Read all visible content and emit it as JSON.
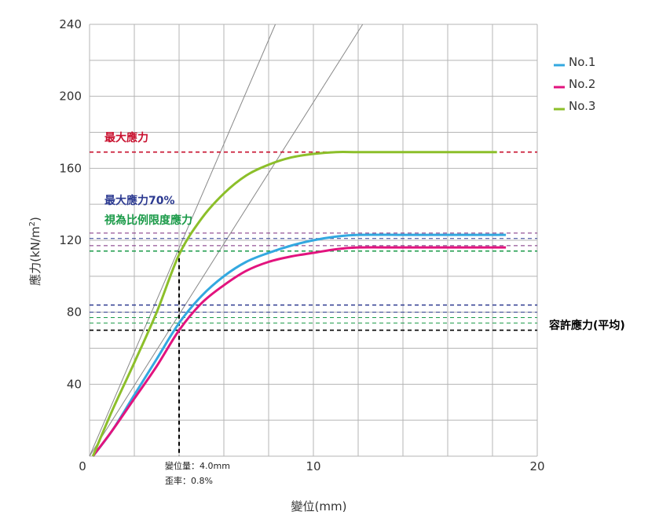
{
  "chart_data": {
    "type": "line",
    "xlabel": "變位(mm)",
    "ylabel": "應力(kN/m",
    "ylabel_sup": "2",
    "ylabel_close": ")",
    "xlim": [
      0,
      20
    ],
    "ylim": [
      0,
      240
    ],
    "x_ticks": [
      0,
      10,
      20
    ],
    "y_ticks": [
      40,
      80,
      120,
      160,
      200,
      240
    ],
    "grid": true,
    "legend_position": "top-right",
    "series": [
      {
        "name": "No.1",
        "color": "#33a8e0",
        "points": [
          [
            0.15,
            0
          ],
          [
            1,
            14
          ],
          [
            2,
            34
          ],
          [
            3,
            54
          ],
          [
            4,
            74
          ],
          [
            5,
            89
          ],
          [
            6,
            100
          ],
          [
            7,
            108
          ],
          [
            8,
            113
          ],
          [
            9,
            117
          ],
          [
            10,
            120
          ],
          [
            11,
            122
          ],
          [
            12,
            123
          ],
          [
            14,
            123
          ],
          [
            16,
            123
          ],
          [
            18.6,
            123
          ]
        ]
      },
      {
        "name": "No.2",
        "color": "#e2137e",
        "points": [
          [
            0.15,
            0
          ],
          [
            1,
            14
          ],
          [
            2,
            32
          ],
          [
            3,
            50
          ],
          [
            4,
            70
          ],
          [
            5,
            85
          ],
          [
            6,
            95
          ],
          [
            7,
            103
          ],
          [
            8,
            108
          ],
          [
            9,
            111
          ],
          [
            10,
            113
          ],
          [
            11,
            115
          ],
          [
            12,
            116
          ],
          [
            14,
            116
          ],
          [
            16,
            116
          ],
          [
            18.6,
            116
          ]
        ]
      },
      {
        "name": "No.3",
        "color": "#8cbf2a",
        "points": [
          [
            0.15,
            0
          ],
          [
            1,
            25
          ],
          [
            2,
            52
          ],
          [
            3,
            80
          ],
          [
            4,
            112
          ],
          [
            5,
            132
          ],
          [
            6,
            146
          ],
          [
            7,
            156
          ],
          [
            8,
            162
          ],
          [
            9,
            166
          ],
          [
            10,
            168
          ],
          [
            11,
            169
          ],
          [
            12,
            169
          ],
          [
            14,
            169
          ],
          [
            16,
            169
          ],
          [
            18.2,
            169
          ]
        ]
      }
    ],
    "reference_lines": [
      {
        "y": 169,
        "color": "#c8102e"
      },
      {
        "y": 124,
        "color": "#7b2a7d"
      },
      {
        "y": 121,
        "color": "#2b3990"
      },
      {
        "y": 117,
        "color": "#7b2a7d"
      },
      {
        "y": 114,
        "color": "#1a9a48"
      },
      {
        "y": 84,
        "color": "#2b3990"
      },
      {
        "y": 80,
        "color": "#2b3990"
      },
      {
        "y": 77,
        "color": "#1a9a48"
      },
      {
        "y": 74,
        "color": "#1a9a48"
      },
      {
        "y": 70,
        "color": "#000000"
      }
    ],
    "marker_x": 4,
    "marker_y": 114,
    "tangent_lines": [
      {
        "x1": 0,
        "y1": 0,
        "x2": 8.3,
        "y2": 240
      },
      {
        "x1": 0,
        "y1": 0,
        "x2": 12.2,
        "y2": 240
      }
    ],
    "annotations": {
      "max_stress": "最大應力",
      "max70_line1": "最大應力70%",
      "max70_line2": "視為比例限度應力",
      "allowable": "容許應力(平均)",
      "disp_note": "變位量：4.0mm",
      "strain_note": "歪率：0.8%"
    },
    "colors": {
      "max_stress_text": "#c8102e",
      "max70_text": "#2b3990",
      "proportional_text": "#1a9a48",
      "allowable_text": "#000000",
      "grid": "#b5b5b5",
      "tangent": "#888888"
    }
  }
}
